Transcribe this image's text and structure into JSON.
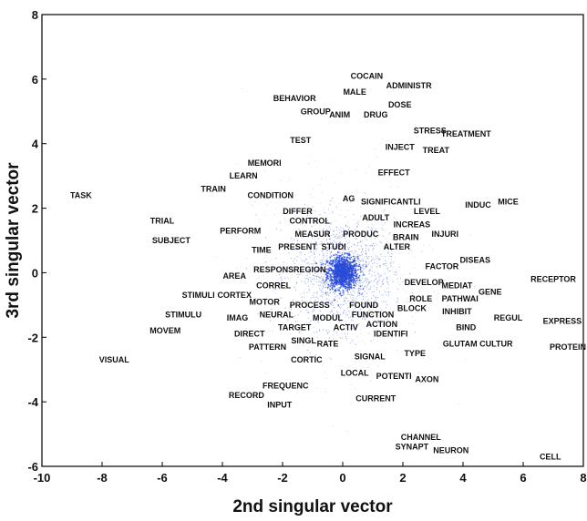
{
  "chart_data": {
    "type": "scatter",
    "title": "",
    "xlabel": "2nd singular vector",
    "ylabel": "3rd singular vector",
    "xlim": [
      -10,
      8
    ],
    "ylim": [
      -6,
      8
    ],
    "xticks": [
      "-10",
      "-8",
      "-6",
      "-4",
      "-2",
      "0",
      "2",
      "4",
      "6",
      "8"
    ],
    "yticks": [
      "-6",
      "-4",
      "-2",
      "0",
      "2",
      "4",
      "6",
      "8"
    ],
    "grid": false,
    "cloud_color": "#2a4bd8",
    "cloud_center": [
      0,
      0
    ],
    "labels": [
      {
        "text": "COCAIN",
        "x": 0.8,
        "y": 6.1
      },
      {
        "text": "ADMINISTR",
        "x": 2.2,
        "y": 5.8
      },
      {
        "text": "MALE",
        "x": 0.4,
        "y": 5.6
      },
      {
        "text": "BEHAVIOR",
        "x": -1.6,
        "y": 5.4
      },
      {
        "text": "DOSE",
        "x": 1.9,
        "y": 5.2
      },
      {
        "text": "GROUP",
        "x": -0.9,
        "y": 5.0
      },
      {
        "text": "ANIM",
        "x": -0.1,
        "y": 4.9
      },
      {
        "text": "DRUG",
        "x": 1.1,
        "y": 4.9
      },
      {
        "text": "STRESS",
        "x": 2.9,
        "y": 4.4
      },
      {
        "text": "TREATMENT",
        "x": 4.1,
        "y": 4.3
      },
      {
        "text": "TEST",
        "x": -1.4,
        "y": 4.1
      },
      {
        "text": "INJECT",
        "x": 1.9,
        "y": 3.9
      },
      {
        "text": "TREAT",
        "x": 3.1,
        "y": 3.8
      },
      {
        "text": "MEMORI",
        "x": -2.6,
        "y": 3.4
      },
      {
        "text": "LEARN",
        "x": -3.3,
        "y": 3.0
      },
      {
        "text": "EFFECT",
        "x": 1.7,
        "y": 3.1
      },
      {
        "text": "TRAIN",
        "x": -4.3,
        "y": 2.6
      },
      {
        "text": "CONDITION",
        "x": -2.4,
        "y": 2.4
      },
      {
        "text": "TASK",
        "x": -8.7,
        "y": 2.4
      },
      {
        "text": "AG",
        "x": 0.2,
        "y": 2.3
      },
      {
        "text": "SIGNIFICANTLI",
        "x": 1.6,
        "y": 2.2
      },
      {
        "text": "MICE",
        "x": 5.5,
        "y": 2.2
      },
      {
        "text": "INDUC",
        "x": 4.5,
        "y": 2.1
      },
      {
        "text": "DIFFER",
        "x": -1.5,
        "y": 1.9
      },
      {
        "text": "LEVEL",
        "x": 2.8,
        "y": 1.9
      },
      {
        "text": "ADULT",
        "x": 1.1,
        "y": 1.7
      },
      {
        "text": "TRIAL",
        "x": -6.0,
        "y": 1.6
      },
      {
        "text": "CONTROL",
        "x": -1.1,
        "y": 1.6
      },
      {
        "text": "INCREAS",
        "x": 2.3,
        "y": 1.5
      },
      {
        "text": "PERFORM",
        "x": -3.4,
        "y": 1.3
      },
      {
        "text": "MEASUR",
        "x": -1.0,
        "y": 1.2
      },
      {
        "text": "PRODUC",
        "x": 0.6,
        "y": 1.2
      },
      {
        "text": "INJURI",
        "x": 3.4,
        "y": 1.2
      },
      {
        "text": "BRAIN",
        "x": 2.1,
        "y": 1.1
      },
      {
        "text": "SUBJECT",
        "x": -5.7,
        "y": 1.0
      },
      {
        "text": "PRESENT",
        "x": -1.5,
        "y": 0.8
      },
      {
        "text": "STUDI",
        "x": -0.3,
        "y": 0.8
      },
      {
        "text": "ALTER",
        "x": 1.8,
        "y": 0.8
      },
      {
        "text": "TIME",
        "x": -2.7,
        "y": 0.7
      },
      {
        "text": "DISEAS",
        "x": 4.4,
        "y": 0.4
      },
      {
        "text": "FACTOR",
        "x": 3.3,
        "y": 0.2
      },
      {
        "text": "RESPONS",
        "x": -2.3,
        "y": 0.1
      },
      {
        "text": "REGION",
        "x": -1.1,
        "y": 0.1
      },
      {
        "text": "AREA",
        "x": -3.6,
        "y": -0.1
      },
      {
        "text": "RECEPTOR",
        "x": 7.0,
        "y": -0.2
      },
      {
        "text": "DEVELOP",
        "x": 2.7,
        "y": -0.3
      },
      {
        "text": "MEDIAT",
        "x": 3.8,
        "y": -0.4
      },
      {
        "text": "CORREL",
        "x": -2.3,
        "y": -0.4
      },
      {
        "text": "GENE",
        "x": 4.9,
        "y": -0.6
      },
      {
        "text": "STIMULI",
        "x": -4.8,
        "y": -0.7
      },
      {
        "text": "CORTEX",
        "x": -3.6,
        "y": -0.7
      },
      {
        "text": "ROLE",
        "x": 2.6,
        "y": -0.8
      },
      {
        "text": "PATHWAI",
        "x": 3.9,
        "y": -0.8
      },
      {
        "text": "MOTOR",
        "x": -2.6,
        "y": -0.9
      },
      {
        "text": "PROCESS",
        "x": -1.1,
        "y": -1.0
      },
      {
        "text": "FOUND",
        "x": 0.7,
        "y": -1.0
      },
      {
        "text": "BLOCK",
        "x": 2.3,
        "y": -1.1
      },
      {
        "text": "FUNCTION",
        "x": 1.0,
        "y": -1.3
      },
      {
        "text": "INHIBIT",
        "x": 3.8,
        "y": -1.2
      },
      {
        "text": "STIMULU",
        "x": -5.3,
        "y": -1.3
      },
      {
        "text": "NEURAL",
        "x": -2.2,
        "y": -1.3
      },
      {
        "text": "IMAG",
        "x": -3.5,
        "y": -1.4
      },
      {
        "text": "MODUL",
        "x": -0.5,
        "y": -1.4
      },
      {
        "text": "REGUL",
        "x": 5.5,
        "y": -1.4
      },
      {
        "text": "EXPRESS",
        "x": 7.3,
        "y": -1.5
      },
      {
        "text": "ACTION",
        "x": 1.3,
        "y": -1.6
      },
      {
        "text": "BIND",
        "x": 4.1,
        "y": -1.7
      },
      {
        "text": "ACTIV",
        "x": 0.1,
        "y": -1.7
      },
      {
        "text": "TARGET",
        "x": -1.6,
        "y": -1.7
      },
      {
        "text": "MOVEM",
        "x": -5.9,
        "y": -1.8
      },
      {
        "text": "DIRECT",
        "x": -3.1,
        "y": -1.9
      },
      {
        "text": "IDENTIFI",
        "x": 1.6,
        "y": -1.9
      },
      {
        "text": "SINGL",
        "x": -1.3,
        "y": -2.1
      },
      {
        "text": "RATE",
        "x": -0.5,
        "y": -2.2
      },
      {
        "text": "GLUTAM",
        "x": 3.9,
        "y": -2.2
      },
      {
        "text": "CULTUR",
        "x": 5.1,
        "y": -2.2
      },
      {
        "text": "PROTEIN",
        "x": 7.9,
        "y": -2.3
      },
      {
        "text": "PATTERN",
        "x": -2.5,
        "y": -2.3
      },
      {
        "text": "TYPE",
        "x": 2.4,
        "y": -2.5
      },
      {
        "text": "SIGNAL",
        "x": 0.9,
        "y": -2.6
      },
      {
        "text": "CORTIC",
        "x": -1.2,
        "y": -2.7
      },
      {
        "text": "VISUAL",
        "x": -7.6,
        "y": -2.7
      },
      {
        "text": "LOCAL",
        "x": 0.4,
        "y": -3.1
      },
      {
        "text": "POTENTI",
        "x": 1.7,
        "y": -3.2
      },
      {
        "text": "AXON",
        "x": 2.8,
        "y": -3.3
      },
      {
        "text": "FREQUENC",
        "x": -1.9,
        "y": -3.5
      },
      {
        "text": "RECORD",
        "x": -3.2,
        "y": -3.8
      },
      {
        "text": "CURRENT",
        "x": 1.1,
        "y": -3.9
      },
      {
        "text": "INPUT",
        "x": -2.1,
        "y": -4.1
      },
      {
        "text": "CHANNEL",
        "x": 2.6,
        "y": -5.1
      },
      {
        "text": "SYNAPT",
        "x": 2.3,
        "y": -5.4
      },
      {
        "text": "NEURON",
        "x": 3.6,
        "y": -5.5
      },
      {
        "text": "CELL",
        "x": 6.9,
        "y": -5.7
      }
    ]
  }
}
